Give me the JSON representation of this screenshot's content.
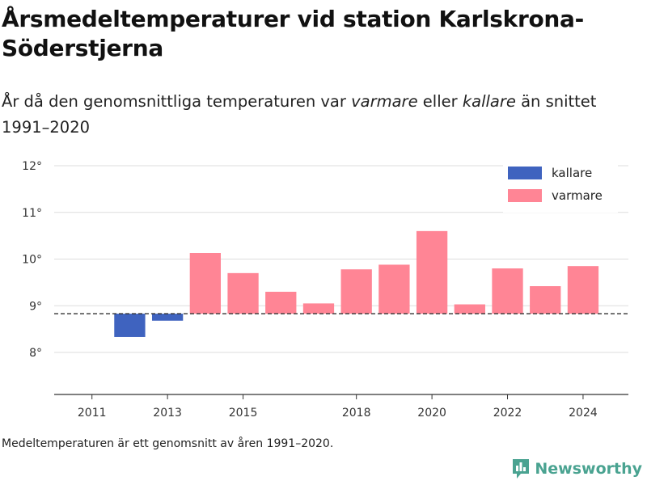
{
  "header": {
    "title": "Årsmedeltemperaturer vid station Karlskrona-Söderstjerna",
    "subtitle_part1": "År då den genomsnittliga temperaturen var ",
    "subtitle_em1": "varmare",
    "subtitle_part2": " eller ",
    "subtitle_em2": "kallare",
    "subtitle_part3": " än snittet 1991–2020"
  },
  "footer": {
    "note": "Medeltemperaturen är ett genomsnitt av åren 1991–2020.",
    "brand": "Newsworthy",
    "brand_icon": "bar-chart-logo-icon"
  },
  "colors": {
    "colder": "#3f63bf",
    "warmer": "#ff8595",
    "grid": "#dddddd",
    "axis": "#333333",
    "baseline": "#333333",
    "brand": "#4aa391"
  },
  "chart_data": {
    "type": "bar",
    "title": "Årsmedeltemperaturer vid station Karlskrona-Söderstjerna",
    "subtitle": "År då den genomsnittliga temperaturen var varmare eller kallare än snittet 1991–2020",
    "baseline": 8.83,
    "baseline_style": "dashed",
    "categories": [
      2011,
      2012,
      2013,
      2014,
      2015,
      2016,
      2017,
      2018,
      2019,
      2020,
      2021,
      2022,
      2023,
      2024
    ],
    "values": [
      8.83,
      8.33,
      8.68,
      10.13,
      9.7,
      9.3,
      9.05,
      9.78,
      9.88,
      10.6,
      9.03,
      9.8,
      9.42,
      9.85
    ],
    "x_ticks": [
      2011,
      2013,
      2015,
      2018,
      2020,
      2022,
      2024
    ],
    "x_range": [
      2010.0,
      2025.2
    ],
    "ylim": [
      7.1,
      12.0
    ],
    "y_ticks": [
      8,
      9,
      10,
      11,
      12
    ],
    "y_tick_labels": [
      "8°",
      "9°",
      "10°",
      "11°",
      "12°"
    ],
    "grid": true,
    "legend": {
      "position": "top-right",
      "entries": [
        {
          "label": "kallare",
          "color": "#3f63bf"
        },
        {
          "label": "varmare",
          "color": "#ff8595"
        }
      ]
    }
  }
}
